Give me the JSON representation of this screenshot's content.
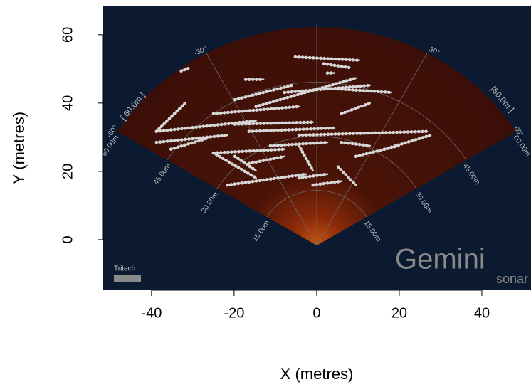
{
  "chart_data": {
    "type": "line",
    "x_label": "X (metres)",
    "y_label": "Y (metres)",
    "xlim": [
      -51.7,
      51.9
    ],
    "ylim": [
      -14.8,
      68.5
    ],
    "xticks": [
      -40,
      -20,
      0,
      20,
      40
    ],
    "yticks": [
      0,
      20,
      40,
      60
    ],
    "color": "#d6d6d6",
    "series": [
      {
        "x": [
          -5.2,
          10.3
        ],
        "values": [
          53.5,
          52.5
        ]
      },
      {
        "x": [
          -32.8,
          -31.0
        ],
        "values": [
          49.4,
          50.2
        ]
      },
      {
        "x": [
          -17.2,
          -12.9
        ],
        "values": [
          46.9,
          46.9
        ]
      },
      {
        "x": [
          1.7,
          7.8
        ],
        "values": [
          51.5,
          50.4
        ]
      },
      {
        "x": [
          2.6,
          4.3
        ],
        "values": [
          48.8,
          48.8
        ]
      },
      {
        "x": [
          -38.8,
          -31.9
        ],
        "values": [
          31.7,
          40.0
        ]
      },
      {
        "x": [
          -38.8,
          -14.7
        ],
        "values": [
          31.7,
          34.8
        ]
      },
      {
        "x": [
          -38.8,
          -21.6
        ],
        "values": [
          28.5,
          30.6
        ]
      },
      {
        "x": [
          -35.3,
          -26.7
        ],
        "values": [
          26.5,
          29.6
        ]
      },
      {
        "x": [
          -25.0,
          -4.3
        ],
        "values": [
          36.9,
          39.0
        ]
      },
      {
        "x": [
          -19.8,
          -6.0
        ],
        "values": [
          41.0,
          45.2
        ]
      },
      {
        "x": [
          -14.7,
          9.5
        ],
        "values": [
          39.0,
          47.3
        ]
      },
      {
        "x": [
          -7.8,
          12.9
        ],
        "values": [
          43.1,
          45.2
        ]
      },
      {
        "x": [
          4.3,
          18.1
        ],
        "values": [
          44.2,
          43.1
        ]
      },
      {
        "x": [
          -19.8,
          -0.9
        ],
        "values": [
          33.8,
          34.4
        ]
      },
      {
        "x": [
          6.0,
          12.9
        ],
        "values": [
          36.9,
          40.0
        ]
      },
      {
        "x": [
          -16.4,
          4.3
        ],
        "values": [
          31.7,
          32.7
        ]
      },
      {
        "x": [
          -4.3,
          26.7
        ],
        "values": [
          30.6,
          31.7
        ]
      },
      {
        "x": [
          6.0,
          12.9
        ],
        "values": [
          28.5,
          27.5
        ]
      },
      {
        "x": [
          -25.0,
          -7.8
        ],
        "values": [
          25.4,
          26.5
        ]
      },
      {
        "x": [
          -11.2,
          2.6
        ],
        "values": [
          27.5,
          28.5
        ]
      },
      {
        "x": [
          -16.4,
          -7.8
        ],
        "values": [
          22.3,
          24.4
        ]
      },
      {
        "x": [
          -21.6,
          -2.6
        ],
        "values": [
          16.0,
          19.2
        ]
      },
      {
        "x": [
          -25.0,
          -14.7
        ],
        "values": [
          25.4,
          18.1
        ]
      },
      {
        "x": [
          -19.8,
          -14.7
        ],
        "values": [
          24.4,
          20.2
        ]
      },
      {
        "x": [
          -4.3,
          2.6
        ],
        "values": [
          18.1,
          19.2
        ]
      },
      {
        "x": [
          5.2,
          9.5
        ],
        "values": [
          21.3,
          16.0
        ]
      },
      {
        "x": [
          -0.9,
          6.0
        ],
        "values": [
          16.0,
          17.1
        ]
      },
      {
        "x": [
          9.5,
          19.8
        ],
        "values": [
          24.4,
          27.5
        ]
      },
      {
        "x": [
          16.4,
          27.6
        ],
        "values": [
          26.5,
          30.6
        ]
      },
      {
        "x": [
          -4.3,
          -0.9
        ],
        "values": [
          27.5,
          20.2
        ]
      }
    ],
    "sonar_text": {
      "ranges_left": [
        "15.00m",
        "30.00m",
        "45.00m",
        "60.00m"
      ],
      "ranges_right": [
        "15.00m",
        "30.00m",
        "45.00m",
        "60.00m"
      ],
      "angle_left_outer": "-60°",
      "angle_left_inner": "-30°",
      "angle_right_inner": "30°",
      "angle_right_outer": "60°",
      "span_left": "[ 60.0m ]",
      "span_right": "[60.0m ]",
      "maker": "Tritech",
      "logo": "Gemini",
      "logo_sub": "sonar"
    }
  }
}
